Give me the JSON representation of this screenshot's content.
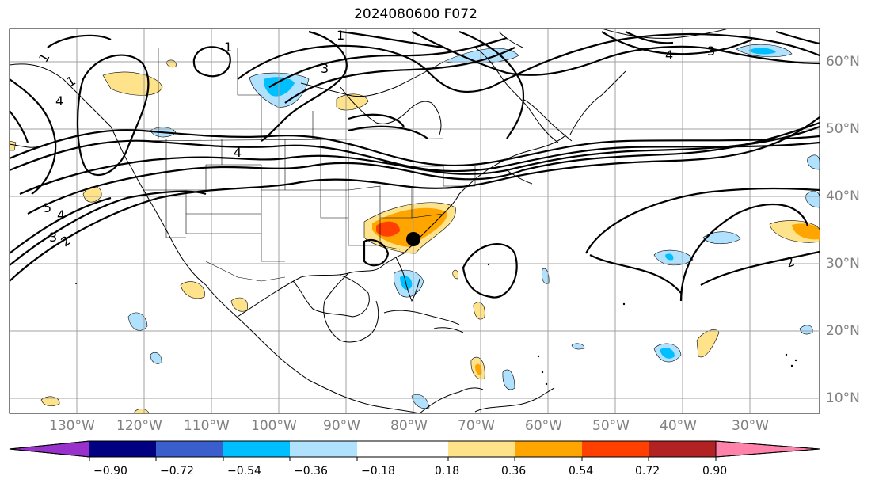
{
  "title": "2024080600 F072",
  "axes": {
    "lon_labels": [
      "130°W",
      "120°W",
      "110°W",
      "100°W",
      "90°W",
      "80°W",
      "70°W",
      "60°W",
      "50°W",
      "40°W",
      "30°W"
    ],
    "lat_labels": [
      "60°N",
      "50°N",
      "40°N",
      "30°N",
      "20°N",
      "10°N"
    ]
  },
  "contour_labels": [
    "1",
    "1",
    "1",
    "1",
    "2",
    "2",
    "3",
    "3",
    "3",
    "4",
    "4",
    "4",
    "4",
    "5"
  ],
  "colorbar": {
    "tick_labels": [
      "−0.90",
      "−0.72",
      "−0.54",
      "−0.36",
      "−0.18",
      "0.18",
      "0.36",
      "0.54",
      "0.72",
      "0.90"
    ],
    "colors": [
      "#9932cc",
      "#000080",
      "#3a5fcd",
      "#00bfff",
      "#b0e2ff",
      "#ffffff",
      "#ffe38a",
      "#ffa500",
      "#ff4000",
      "#b22222",
      "#ff82ab"
    ]
  },
  "markers": [
    "storm-center-marker"
  ]
}
